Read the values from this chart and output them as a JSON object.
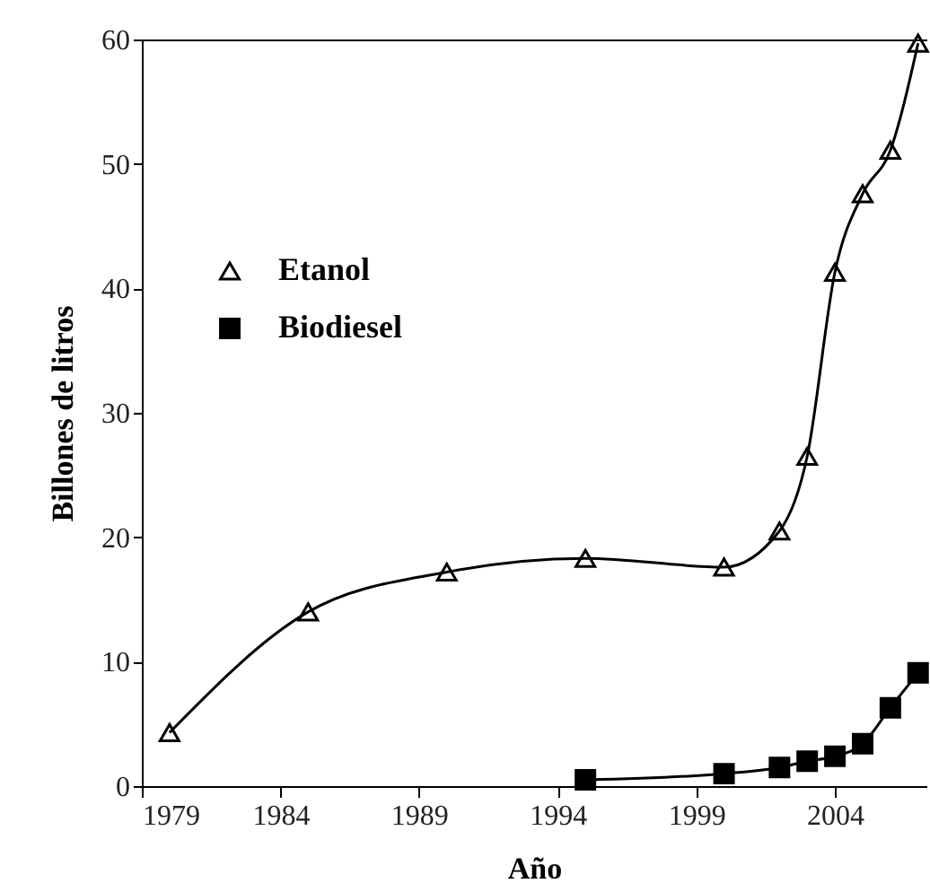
{
  "chart_data": {
    "type": "line",
    "xlabel": "Año",
    "ylabel": "Billones de litros",
    "xlim": [
      1979,
      2007.3
    ],
    "xticks": [
      1979,
      1984,
      1989,
      1994,
      1999,
      2004
    ],
    "ylim": [
      0,
      60
    ],
    "yticks": [
      0,
      10,
      20,
      30,
      40,
      50,
      60
    ],
    "legend": "top left",
    "grid": false,
    "series": [
      {
        "name": "Etanol",
        "color": "#000000",
        "marker": "triangle",
        "x": [
          1980,
          1985,
          1990,
          1995,
          2000,
          2002,
          2003,
          2004,
          2005,
          2006,
          2007
        ],
        "values": [
          4.3,
          14,
          17.2,
          18.3,
          17.6,
          20.5,
          26.5,
          41.3,
          47.6,
          51.1,
          59.7
        ]
      },
      {
        "name": "Biodiesel",
        "color": "#000000",
        "marker": "square",
        "x": [
          1995,
          2000,
          2002,
          2003,
          2004,
          2005,
          2006,
          2007
        ],
        "values": [
          0.5,
          1.0,
          1.5,
          2.0,
          2.4,
          3.4,
          6.3,
          9.1
        ]
      }
    ]
  }
}
